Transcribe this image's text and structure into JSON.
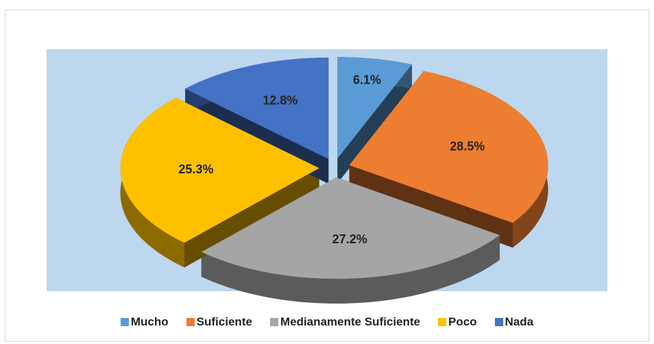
{
  "chart_data": {
    "type": "pie3d",
    "categories": [
      "Mucho",
      "Suficiente",
      "Medianamente Suficiente",
      "Poco",
      "Nada"
    ],
    "values": [
      6.1,
      28.5,
      27.2,
      25.3,
      12.8
    ],
    "value_labels": [
      "6.1%",
      "28.5%",
      "27.2%",
      "25.3%",
      "12.8%"
    ],
    "colors": [
      "#5b9bd5",
      "#ed7d31",
      "#a5a5a5",
      "#ffc000",
      "#4472c4"
    ],
    "legend": "bottom"
  }
}
